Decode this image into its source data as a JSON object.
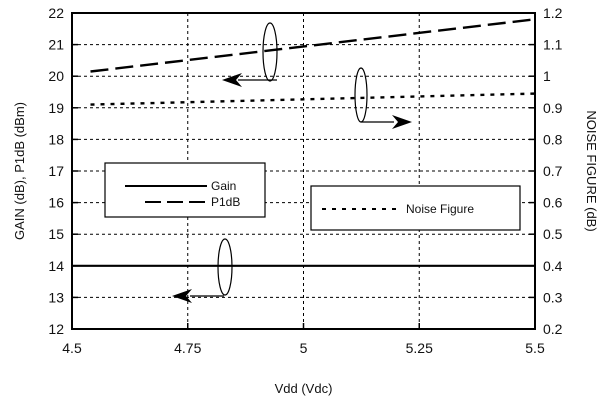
{
  "chart_data": {
    "type": "line",
    "xlabel": "Vdd (Vdc)",
    "ylabel_left": "GAIN (dB), P1dB (dBm)",
    "ylabel_right": "NOISE FIGURE (dB)",
    "xlim": [
      4.5,
      5.5
    ],
    "ylim_left": [
      12,
      22
    ],
    "ylim_right": [
      0.2,
      1.2
    ],
    "x_ticks": [
      4.5,
      4.75,
      5,
      5.25,
      5.5
    ],
    "x_tick_labels": [
      "4.5",
      "4.75",
      "5",
      "5.25",
      "5.5"
    ],
    "y_left_ticks": [
      12,
      13,
      14,
      15,
      16,
      17,
      18,
      19,
      20,
      21,
      22
    ],
    "y_left_tick_labels": [
      "12",
      "13",
      "14",
      "15",
      "16",
      "17",
      "18",
      "19",
      "20",
      "21",
      "22"
    ],
    "y_right_ticks": [
      0.2,
      0.3,
      0.4,
      0.5,
      0.6,
      0.7,
      0.8,
      0.9,
      1.0,
      1.1,
      1.2
    ],
    "y_right_tick_labels": [
      "0.2",
      "0.3",
      "0.4",
      "0.5",
      "0.6",
      "0.7",
      "0.8",
      "0.9",
      "1",
      "1.1",
      "1.2"
    ],
    "grid": true,
    "series": [
      {
        "name": "Gain",
        "axis": "left",
        "style": "solid",
        "x": [
          4.5,
          5.5
        ],
        "y": [
          14.0,
          14.0
        ]
      },
      {
        "name": "P1dB",
        "axis": "left",
        "style": "long-dash",
        "x": [
          4.54,
          5.5
        ],
        "y": [
          20.15,
          21.8
        ]
      },
      {
        "name": "Noise Figure",
        "axis": "right",
        "style": "dotted",
        "x": [
          4.54,
          5.5
        ],
        "y": [
          0.91,
          0.945
        ]
      }
    ],
    "legend": {
      "left_box_entries": [
        "Gain",
        "P1dB"
      ],
      "right_box_entries": [
        "Noise Figure"
      ],
      "placement": "left and right, mid-height"
    },
    "annotations": [
      {
        "type": "ellipse-arrow",
        "series": "P1dB",
        "points_to": "left axis"
      },
      {
        "type": "ellipse-arrow",
        "series": "Noise Figure",
        "points_to": "right axis"
      },
      {
        "type": "ellipse-arrow",
        "series": "Gain",
        "points_to": "left axis"
      }
    ],
    "colors": {
      "lines": "#000000",
      "grid": "#000000",
      "background": "#ffffff"
    }
  }
}
